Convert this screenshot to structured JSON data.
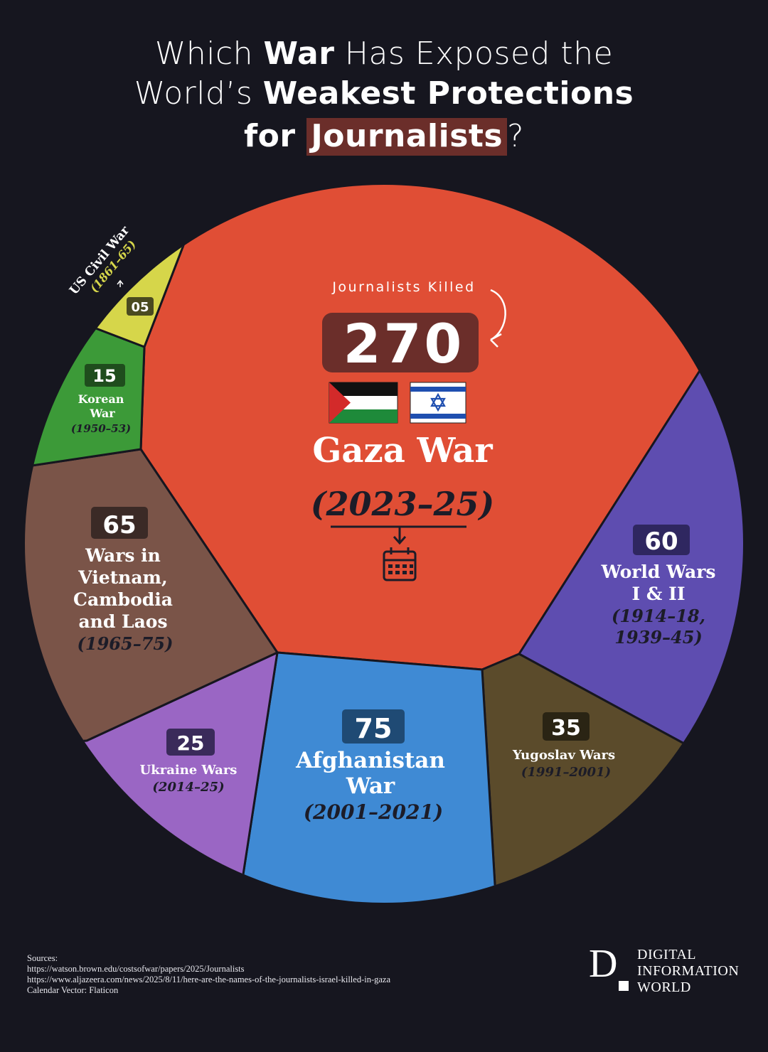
{
  "title": {
    "line1_a": "Which ",
    "line1_b": "War",
    "line1_c": " Has Exposed the",
    "line2_a": "World’s ",
    "line2_b": "Weakest Protections",
    "line3_a": "for ",
    "line3_b": "Journalists",
    "line3_c": "?"
  },
  "chart_data": {
    "type": "pie",
    "title": "Which War Has Exposed the World’s Weakest Protections for Journalists?",
    "value_label": "Journalists Killed",
    "slices": [
      {
        "label": "Gaza War",
        "period": "(2023–25)",
        "value": 270,
        "value_text": "270",
        "color": "#e04e35"
      },
      {
        "label": "World Wars I & II",
        "period": "(1914–18, 1939–45)",
        "value": 60,
        "value_text": "60",
        "color": "#5e4db0"
      },
      {
        "label": "Yugoslav Wars",
        "period": "(1991–2001)",
        "value": 35,
        "value_text": "35",
        "color": "#5b4b2b"
      },
      {
        "label": "Afghanistan War",
        "period": "(2001–2021)",
        "value": 75,
        "value_text": "75",
        "color": "#3f8ad4"
      },
      {
        "label": "Ukraine Wars",
        "period": "(2014–25)",
        "value": 25,
        "value_text": "25",
        "color": "#9a66c4"
      },
      {
        "label": "Wars in Vietnam, Cambodia and Laos",
        "period": "(1965–75)",
        "value": 65,
        "value_text": "65",
        "color": "#7a5448"
      },
      {
        "label": "Korean War",
        "period": "(1950–53)",
        "value": 15,
        "value_text": "15",
        "color": "#3c9a38"
      },
      {
        "label": "US Civil War",
        "period": "(1861–65)",
        "value": 5,
        "value_text": "05",
        "color": "#d6d64a"
      }
    ]
  },
  "labels": {
    "journalists_killed": "Journalists Killed",
    "gaza_value": "270",
    "gaza_name": "Gaza War",
    "gaza_period": "(2023–25)",
    "ww_value": "60",
    "ww_line1": "World Wars",
    "ww_line2": "I & II",
    "ww_period1": "(1914–18,",
    "ww_period2": "1939–45)",
    "yugo_value": "35",
    "yugo_name": "Yugoslav Wars",
    "yugo_period": "(1991–2001)",
    "afg_value": "75",
    "afg_line1": "Afghanistan",
    "afg_line2": "War",
    "afg_period": "(2001–2021)",
    "ukr_value": "25",
    "ukr_name": "Ukraine Wars",
    "ukr_period": "(2014–25)",
    "viet_value": "65",
    "viet_line1": "Wars in",
    "viet_line2": "Vietnam,",
    "viet_line3": "Cambodia",
    "viet_line4": "and Laos",
    "viet_period": "(1965–75)",
    "korea_value": "15",
    "korea_line1": "Korean",
    "korea_line2": "War",
    "korea_period": "(1950–53)",
    "us_value": "05",
    "us_name": "US Civil War",
    "us_period": "(1861–65)"
  },
  "colors": {
    "background": "#16161f",
    "gaza": "#e04e35",
    "gaza_badge": "#6b2e2a",
    "world_wars": "#5e4db0",
    "yugoslav": "#5b4b2b",
    "afghanistan": "#3f8ad4",
    "ukraine": "#9a66c4",
    "vietnam": "#7a5448",
    "korea": "#3c9a38",
    "us_civil": "#d6d64a",
    "period_text": "#1c1c28"
  },
  "icons": {
    "arrow": "curved-arrow-icon",
    "calendar": "calendar-icon",
    "flags": [
      "palestine-flag-icon",
      "israel-flag-icon"
    ]
  },
  "sources": {
    "heading": "Sources:",
    "line1": "https://watson.brown.edu/costsofwar/papers/2025/Journalists",
    "line2": "https://www.aljazeera.com/news/2025/8/11/here-are-the-names-of-the-journalists-israel-killed-in-gaza",
    "line3": "Calendar Vector: Flaticon"
  },
  "brand": {
    "letter": "D",
    "line1": "DIGITAL",
    "line2": "INFORMATION",
    "line3": "WORLD"
  }
}
